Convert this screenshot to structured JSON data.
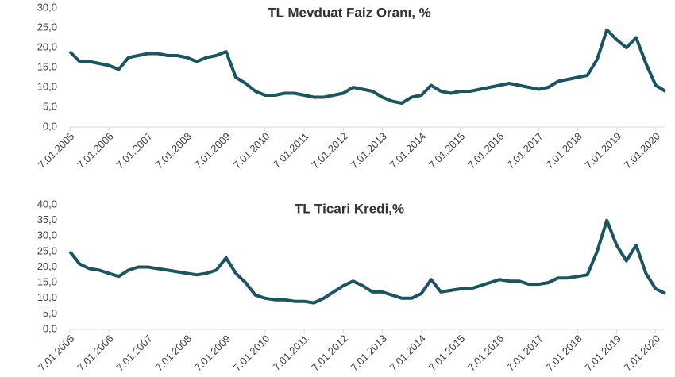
{
  "chart_data": [
    {
      "type": "line",
      "title": "TL   Mevduat Faiz Oranı, %",
      "categories": [
        "7.01.2005",
        null,
        null,
        null,
        "7.01.2006",
        null,
        null,
        null,
        "7.01.2007",
        null,
        null,
        null,
        "7.01.2008",
        null,
        null,
        null,
        "7.01.2009",
        null,
        null,
        null,
        "7.01.2010",
        null,
        null,
        null,
        "7.01.2011",
        null,
        null,
        null,
        "7.01.2012",
        null,
        null,
        null,
        "7.01.2013",
        null,
        null,
        null,
        "7.01.2014",
        null,
        null,
        null,
        "7.01.2015",
        null,
        null,
        null,
        "7.01.2016",
        null,
        null,
        null,
        "7.01.2017",
        null,
        null,
        null,
        "7.01.2018",
        null,
        null,
        null,
        "7.01.2019",
        null,
        null,
        null,
        "7.01.2020",
        null
      ],
      "series": [
        {
          "name": "TL Mevduat Faiz Oranı",
          "color": "#1d5461",
          "values": [
            19,
            16.5,
            16.5,
            16,
            15.5,
            14.5,
            17.5,
            18,
            18.5,
            18.5,
            18,
            18,
            17.5,
            16.5,
            17.5,
            18,
            19,
            12.5,
            11,
            9,
            8,
            8,
            8.5,
            8.5,
            8,
            7.5,
            7.5,
            8,
            8.5,
            10,
            9.5,
            9,
            7.5,
            6.5,
            6,
            7.5,
            8,
            10.5,
            9,
            8.5,
            9,
            9,
            9.5,
            10,
            10.5,
            11,
            10.5,
            10,
            9.5,
            10,
            11.5,
            12,
            12.5,
            13,
            17,
            24.5,
            22,
            20,
            22.5,
            16,
            10.5,
            9
          ]
        }
      ],
      "ylim": [
        0,
        30
      ],
      "yticks": [
        {
          "value": 0,
          "label": "0,0"
        },
        {
          "value": 5,
          "label": "5,0"
        },
        {
          "value": 10,
          "label": "10,0"
        },
        {
          "value": 15,
          "label": "15,0"
        },
        {
          "value": 20,
          "label": "20,0"
        },
        {
          "value": 25,
          "label": "25,0"
        },
        {
          "value": 30,
          "label": "30,0"
        }
      ],
      "grid": false
    },
    {
      "type": "line",
      "title": "TL Ticari Kredi,%",
      "categories": [
        "7.01.2005",
        null,
        null,
        null,
        "7.01.2006",
        null,
        null,
        null,
        "7.01.2007",
        null,
        null,
        null,
        "7.01.2008",
        null,
        null,
        null,
        "7.01.2009",
        null,
        null,
        null,
        "7.01.2010",
        null,
        null,
        null,
        "7.01.2011",
        null,
        null,
        null,
        "7.01.2012",
        null,
        null,
        null,
        "7.01.2013",
        null,
        null,
        null,
        "7.01.2014",
        null,
        null,
        null,
        "7.01.2015",
        null,
        null,
        null,
        "7.01.2016",
        null,
        null,
        null,
        "7.01.2017",
        null,
        null,
        null,
        "7.01.2018",
        null,
        null,
        null,
        "7.01.2019",
        null,
        null,
        null,
        "7.01.2020",
        null
      ],
      "series": [
        {
          "name": "TL Ticari Kredi",
          "color": "#1d5461",
          "values": [
            25,
            21,
            19.5,
            19,
            18,
            17,
            19,
            20,
            20,
            19.5,
            19,
            18.5,
            18,
            17.5,
            18,
            19,
            23,
            18,
            15,
            11,
            10,
            9.5,
            9.5,
            9,
            9,
            8.5,
            10,
            12,
            14,
            15.5,
            14,
            12,
            12,
            11,
            10,
            10,
            11.5,
            16,
            12,
            12.5,
            13,
            13,
            14,
            15,
            16,
            15.5,
            15.5,
            14.5,
            14.5,
            15,
            16.5,
            16.5,
            17,
            17.5,
            25,
            35,
            27,
            22,
            27,
            18,
            13,
            11.5
          ]
        }
      ],
      "ylim": [
        0,
        40
      ],
      "yticks": [
        {
          "value": 0,
          "label": "0,0"
        },
        {
          "value": 5,
          "label": "5,0"
        },
        {
          "value": 10,
          "label": "10,0"
        },
        {
          "value": 15,
          "label": "15,0"
        },
        {
          "value": 20,
          "label": "20,0"
        },
        {
          "value": 25,
          "label": "25,0"
        },
        {
          "value": 30,
          "label": "30,0"
        },
        {
          "value": 35,
          "label": "35,0"
        },
        {
          "value": 40,
          "label": "40,0"
        }
      ],
      "grid": false
    }
  ]
}
